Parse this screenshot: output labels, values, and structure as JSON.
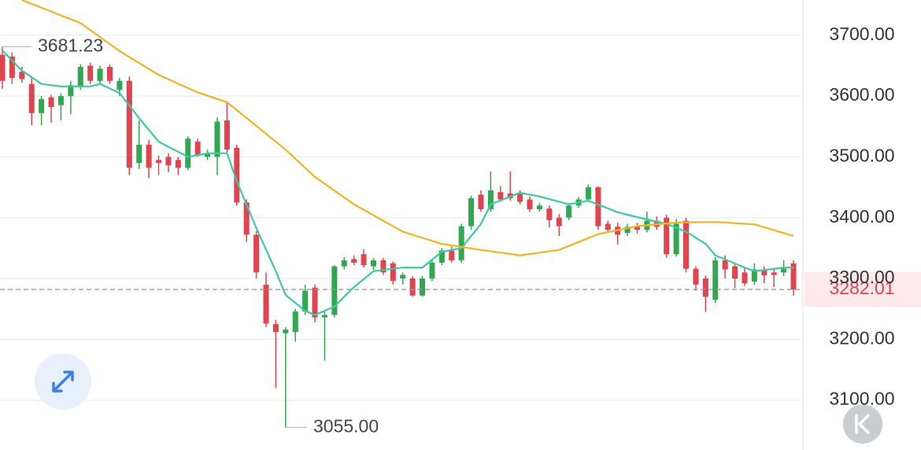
{
  "chart_data": {
    "type": "candlestick",
    "open": [
      3668,
      3665,
      3640,
      3620,
      3572,
      3598,
      3585,
      3600,
      3615,
      3650,
      3625,
      3648,
      3610,
      3625,
      3490,
      3520,
      3495,
      3500,
      3495,
      3482,
      3525,
      3500,
      3500,
      3560,
      3515,
      3425,
      3372,
      3290,
      3225,
      3210,
      3212,
      3246,
      3285,
      3236,
      3240,
      3320,
      3332,
      3340,
      3320,
      3330,
      3325,
      3300,
      3300,
      3272,
      3300,
      3326,
      3346,
      3330,
      3386,
      3438,
      3414,
      3442,
      3440,
      3440,
      3430,
      3414,
      3415,
      3400,
      3400,
      3420,
      3430,
      3450,
      3390,
      3385,
      3375,
      3385,
      3380,
      3395,
      3400,
      3340,
      3395,
      3316,
      3300,
      3265,
      3330,
      3320,
      3310,
      3295,
      3315,
      3310,
      3310,
      3325
    ],
    "high": [
      3681.23,
      3672,
      3648,
      3632,
      3600,
      3602,
      3605,
      3625,
      3652,
      3655,
      3650,
      3652,
      3630,
      3632,
      3560,
      3528,
      3502,
      3506,
      3500,
      3534,
      3530,
      3512,
      3565,
      3590,
      3520,
      3430,
      3378,
      3310,
      3232,
      3220,
      3250,
      3290,
      3290,
      3245,
      3322,
      3335,
      3338,
      3348,
      3334,
      3334,
      3328,
      3310,
      3304,
      3304,
      3330,
      3350,
      3352,
      3390,
      3436,
      3445,
      3476,
      3452,
      3476,
      3445,
      3435,
      3424,
      3420,
      3406,
      3424,
      3434,
      3455,
      3452,
      3395,
      3392,
      3390,
      3392,
      3410,
      3402,
      3405,
      3398,
      3400,
      3320,
      3305,
      3335,
      3338,
      3324,
      3318,
      3325,
      3320,
      3316,
      3330,
      3330
    ],
    "low": [
      3612,
      3620,
      3622,
      3552,
      3552,
      3556,
      3560,
      3570,
      3610,
      3620,
      3620,
      3620,
      3600,
      3470,
      3480,
      3465,
      3470,
      3475,
      3470,
      3478,
      3500,
      3495,
      3470,
      3505,
      3420,
      3360,
      3300,
      3220,
      3120,
      3055,
      3196,
      3240,
      3228,
      3165,
      3236,
      3315,
      3322,
      3318,
      3314,
      3306,
      3290,
      3290,
      3270,
      3270,
      3296,
      3322,
      3326,
      3326,
      3380,
      3410,
      3410,
      3426,
      3428,
      3422,
      3410,
      3410,
      3384,
      3370,
      3396,
      3416,
      3426,
      3380,
      3376,
      3356,
      3370,
      3374,
      3376,
      3380,
      3334,
      3336,
      3310,
      3280,
      3245,
      3260,
      3300,
      3284,
      3288,
      3290,
      3292,
      3286,
      3304,
      3272
    ],
    "close": [
      3625,
      3630,
      3628,
      3572,
      3595,
      3582,
      3600,
      3618,
      3648,
      3625,
      3645,
      3625,
      3625,
      3482,
      3520,
      3482,
      3490,
      3486,
      3482,
      3530,
      3502,
      3506,
      3558,
      3512,
      3425,
      3372,
      3310,
      3226,
      3212,
      3216,
      3246,
      3280,
      3236,
      3240,
      3320,
      3330,
      3326,
      3322,
      3330,
      3310,
      3296,
      3306,
      3272,
      3300,
      3326,
      3346,
      3330,
      3386,
      3432,
      3414,
      3445,
      3430,
      3432,
      3426,
      3414,
      3420,
      3396,
      3386,
      3420,
      3430,
      3450,
      3386,
      3380,
      3372,
      3385,
      3380,
      3395,
      3385,
      3340,
      3390,
      3316,
      3290,
      3270,
      3330,
      3315,
      3300,
      3292,
      3315,
      3305,
      3306,
      3316,
      3282.01
    ],
    "up_color": "#2fa84f",
    "down_color": "#e0444f",
    "lines": [
      {
        "color": "#3cc9a4",
        "x": [
          0,
          2,
          4,
          6,
          9,
          10,
          12,
          14,
          16,
          19,
          21,
          23,
          24,
          26,
          28,
          29,
          31,
          32,
          34,
          36,
          38,
          41,
          43,
          45,
          47,
          49,
          50,
          53,
          55,
          58,
          60,
          63,
          65,
          68,
          70,
          72,
          73,
          76,
          77,
          80,
          81
        ],
        "values": [
          3675,
          3642,
          3620,
          3616,
          3616,
          3620,
          3605,
          3564,
          3525,
          3500,
          3506,
          3506,
          3460,
          3383,
          3312,
          3273,
          3247,
          3240,
          3254,
          3286,
          3312,
          3318,
          3318,
          3344,
          3350,
          3390,
          3422,
          3441,
          3435,
          3422,
          3428,
          3409,
          3401,
          3390,
          3377,
          3357,
          3338,
          3318,
          3312,
          3318,
          3318
        ]
      },
      {
        "color": "#f0b323",
        "x": [
          2,
          8,
          12,
          16,
          20,
          23,
          26,
          29,
          32,
          36,
          41,
          45,
          49,
          53,
          57,
          61,
          65,
          69,
          73,
          77,
          81
        ],
        "values": [
          3758,
          3720,
          3674,
          3635,
          3606,
          3590,
          3551,
          3512,
          3467,
          3422,
          3377,
          3357,
          3347,
          3338,
          3347,
          3373,
          3386,
          3392,
          3393,
          3389,
          3370
        ]
      }
    ],
    "ylim": [
      3018,
      3758
    ],
    "yticks": [
      {
        "value": 3100,
        "label": "3100.00"
      },
      {
        "value": 3200,
        "label": "3200.00"
      },
      {
        "value": 3300,
        "label": "3300.00"
      },
      {
        "value": 3400,
        "label": "3400.00"
      },
      {
        "value": 3500,
        "label": "3500.00"
      },
      {
        "value": 3600,
        "label": "3600.00"
      },
      {
        "value": 3700,
        "label": "3700.00"
      }
    ],
    "grid": true,
    "max_label": 3681.23,
    "min_label": {
      "value": 3055,
      "label": "3055.00"
    },
    "last_price": 3282.01
  }
}
